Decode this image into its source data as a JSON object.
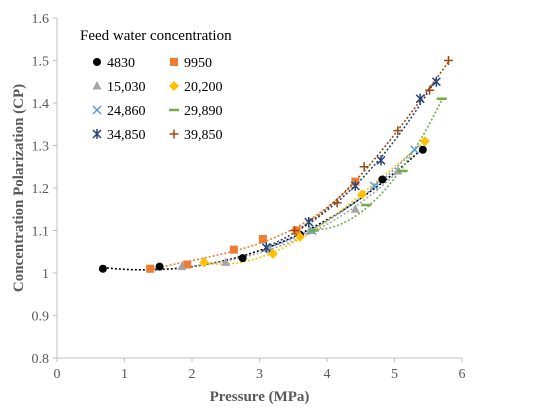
{
  "chart_data": {
    "type": "scatter",
    "xlabel": "Pressure (MPa)",
    "ylabel": "Concentration Polarization (CP)",
    "xlim": [
      0,
      6
    ],
    "ylim": [
      0.8,
      1.6
    ],
    "xticks": [
      "0",
      "1",
      "2",
      "3",
      "4",
      "5",
      "6"
    ],
    "yticks": [
      "0.8",
      "0.9",
      "1",
      "1.1",
      "1.2",
      "1.3",
      "1.4",
      "1.5",
      "1.6"
    ],
    "grid": false,
    "legend": {
      "title": "Feed water concentration",
      "placement": "top-left",
      "columns": 2
    },
    "series": [
      {
        "name": "4830",
        "marker": "circle",
        "color": "#000000",
        "x": [
          0.68,
          1.52,
          2.75,
          3.6,
          4.82,
          5.42
        ],
        "y": [
          1.01,
          1.015,
          1.035,
          1.09,
          1.22,
          1.29
        ]
      },
      {
        "name": "9950",
        "marker": "square",
        "color": "#ED7D31",
        "x": [
          1.38,
          1.93,
          2.62,
          3.05,
          3.55,
          4.42
        ],
        "y": [
          1.01,
          1.02,
          1.055,
          1.08,
          1.1,
          1.215
        ]
      },
      {
        "name": "15,030",
        "marker": "triangle",
        "color": "#A5A5A5",
        "x": [
          1.85,
          2.5,
          3.15,
          3.75,
          4.42,
          5.05
        ],
        "y": [
          1.015,
          1.025,
          1.055,
          1.1,
          1.15,
          1.24
        ]
      },
      {
        "name": "20,200",
        "marker": "diamond",
        "color": "#FFC000",
        "x": [
          2.18,
          3.2,
          3.6,
          4.52,
          5.45
        ],
        "y": [
          1.025,
          1.045,
          1.085,
          1.185,
          1.31
        ]
      },
      {
        "name": "24,860",
        "marker": "x",
        "color": "#5B9BD5",
        "x": [
          3.1,
          3.78,
          4.7,
          5.3
        ],
        "y": [
          1.06,
          1.1,
          1.205,
          1.29
        ]
      },
      {
        "name": "29,890",
        "marker": "dash",
        "color": "#70AD47",
        "x": [
          3.8,
          4.58,
          5.12,
          5.7
        ],
        "y": [
          1.1,
          1.16,
          1.24,
          1.41
        ]
      },
      {
        "name": "34,850",
        "marker": "asterisk",
        "color": "#264478",
        "x": [
          3.1,
          3.73,
          4.42,
          4.8,
          5.38,
          5.62
        ],
        "y": [
          1.06,
          1.12,
          1.205,
          1.265,
          1.41,
          1.45
        ]
      },
      {
        "name": "39,850",
        "marker": "plus",
        "color": "#9E480E",
        "x": [
          3.52,
          4.15,
          4.55,
          5.05,
          5.52,
          5.8
        ],
        "y": [
          1.1,
          1.165,
          1.25,
          1.335,
          1.43,
          1.5
        ]
      }
    ]
  }
}
